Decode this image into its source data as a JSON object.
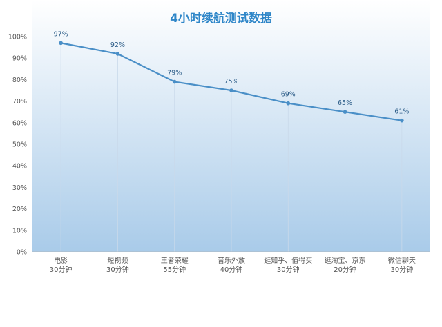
{
  "chart_data": {
    "type": "line",
    "title": "4小时续航测试数据",
    "categories": [
      [
        "电影",
        "30分钟"
      ],
      [
        "短视频",
        "30分钟"
      ],
      [
        "王者荣耀",
        "55分钟"
      ],
      [
        "音乐外放",
        "40分钟"
      ],
      [
        "逛知乎、值得买",
        "30分钟"
      ],
      [
        "逛淘宝、京东",
        "20分钟"
      ],
      [
        "微信聊天",
        "30分钟"
      ]
    ],
    "values": [
      97,
      92,
      79,
      75,
      69,
      65,
      61
    ],
    "data_labels": [
      "97%",
      "92%",
      "79%",
      "75%",
      "69%",
      "65%",
      "61%"
    ],
    "y_ticks": [
      "0%",
      "10%",
      "20%",
      "30%",
      "40%",
      "50%",
      "60%",
      "70%",
      "80%",
      "90%",
      "100%"
    ],
    "ylim": [
      0,
      100
    ],
    "grid": false,
    "legend": "none",
    "colors": {
      "line": "#4a8fc7",
      "title": "#2e86c8",
      "label": "#2f5f8a",
      "axis_text": "#555555",
      "bg_top": "#ffffff",
      "bg_bottom": "#a9cbe9"
    }
  }
}
